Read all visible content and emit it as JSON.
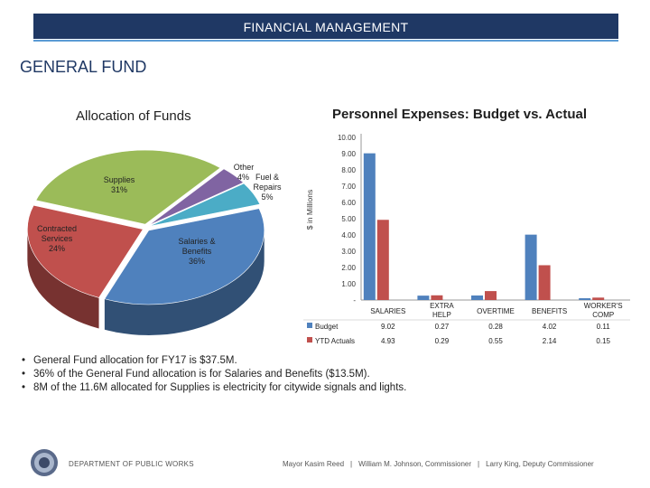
{
  "header": {
    "title": "FINANCIAL MANAGEMENT"
  },
  "section_title": "GENERAL FUND",
  "chart_data": [
    {
      "type": "pie",
      "title": "Allocation of Funds",
      "slices": [
        {
          "label": "Supplies",
          "pct_label": "31%",
          "value": 31,
          "color": "#9bbb59"
        },
        {
          "label": "Other",
          "pct_label": "4%",
          "value": 4,
          "color": "#8064a2"
        },
        {
          "label": "Fuel & Repairs",
          "pct_label": "5%",
          "value": 5,
          "color": "#4bacc6"
        },
        {
          "label": "Salaries & Benefits",
          "pct_label": "36%",
          "value": 36,
          "color": "#4f81bd"
        },
        {
          "label": "Contracted Services",
          "pct_label": "24%",
          "value": 24,
          "color": "#c0504d"
        }
      ]
    },
    {
      "type": "bar",
      "title": "Personnel Expenses: Budget vs. Actual",
      "ylabel": "$ in Millions",
      "ylim": [
        0,
        10
      ],
      "yticks": [
        "10.00",
        "9.00",
        "8.00",
        "7.00",
        "6.00",
        "5.00",
        "4.00",
        "3.00",
        "2.00",
        "1.00",
        "-"
      ],
      "categories": [
        "SALARIES",
        "EXTRA HELP",
        "OVERTIME",
        "BENEFITS",
        "WORKER'S COMP"
      ],
      "series": [
        {
          "name": "Budget",
          "color": "#4f81bd",
          "values": [
            9.02,
            0.27,
            0.28,
            4.02,
            0.11
          ],
          "labels": [
            "9.02",
            "0.27",
            "0.28",
            "4.02",
            "0.11"
          ]
        },
        {
          "name": "YTD Actuals",
          "color": "#c0504d",
          "values": [
            4.93,
            0.29,
            0.55,
            2.14,
            0.15
          ],
          "labels": [
            "4.93",
            "0.29",
            "0.55",
            "2.14",
            "0.15"
          ]
        }
      ]
    }
  ],
  "bullets": [
    "General Fund allocation for FY17 is $37.5M.",
    "36% of the General Fund allocation is for Salaries and Benefits ($13.5M).",
    "8M of the 11.6M allocated for Supplies is electricity for citywide signals and lights."
  ],
  "footer": {
    "department": "DEPARTMENT OF PUBLIC WORKS",
    "mayor": "Mayor Kasim Reed",
    "commissioner": "William M. Johnson, Commissioner",
    "deputy": "Larry King, Deputy Commissioner",
    "separator": "|"
  },
  "colors": {
    "header_bg": "#1f3864",
    "header_rule": "#5b9bd5"
  }
}
